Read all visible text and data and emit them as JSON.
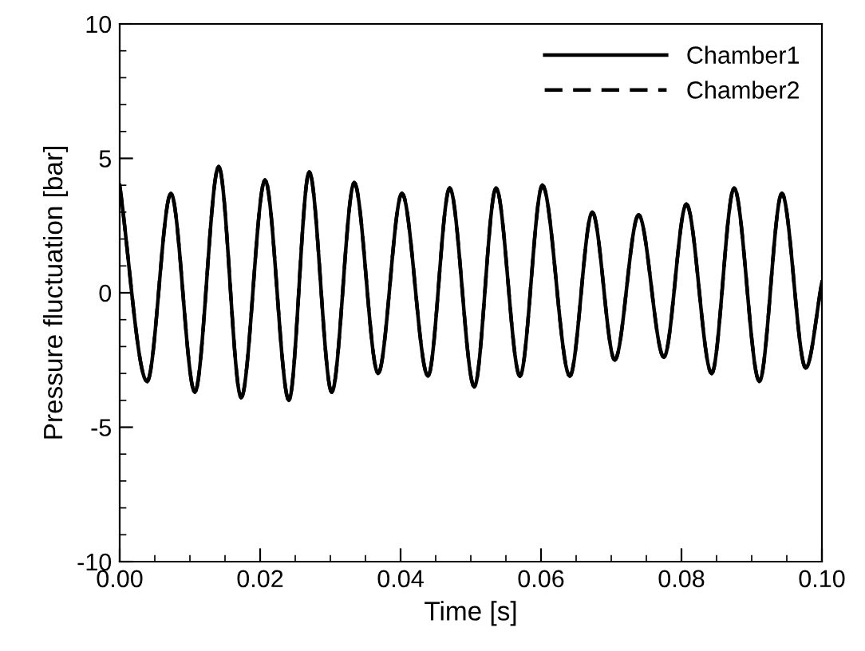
{
  "chart_data": {
    "type": "line",
    "xlabel": "Time [s]",
    "ylabel": "Pressure fluctuation [bar]",
    "x": [
      0,
      0.0039,
      0.0073,
      0.0107,
      0.0141,
      0.0173,
      0.0207,
      0.0241,
      0.027,
      0.0302,
      0.0334,
      0.0368,
      0.0402,
      0.0439,
      0.047,
      0.0505,
      0.0536,
      0.057,
      0.0602,
      0.0641,
      0.0673,
      0.0705,
      0.0739,
      0.0775,
      0.0807,
      0.0843,
      0.0875,
      0.0911,
      0.0943,
      0.0977,
      0.1
    ],
    "series": [
      {
        "name": "Chamber1",
        "color": "#000000",
        "line_style": "solid",
        "values": [
          4.0,
          -3.3,
          3.7,
          -3.7,
          4.7,
          -3.9,
          4.2,
          -4.0,
          4.5,
          -3.7,
          4.1,
          -3.0,
          3.7,
          -3.1,
          3.9,
          -3.5,
          3.9,
          -3.1,
          4.0,
          -3.1,
          3.0,
          -2.5,
          2.9,
          -2.4,
          3.3,
          -3.0,
          3.9,
          -3.3,
          3.7,
          -2.8,
          0.4
        ]
      },
      {
        "name": "Chamber2",
        "color": "#000000",
        "line_style": "dashed",
        "values": [
          4.0,
          -3.3,
          3.7,
          -3.7,
          4.7,
          -3.9,
          4.2,
          -4.0,
          4.5,
          -3.7,
          4.1,
          -3.0,
          3.7,
          -3.1,
          3.9,
          -3.5,
          3.9,
          -3.1,
          4.0,
          -3.1,
          3.0,
          -2.5,
          2.9,
          -2.4,
          3.3,
          -3.0,
          3.9,
          -3.3,
          3.7,
          -2.8,
          0.4
        ]
      }
    ],
    "xlim": [
      0,
      0.1
    ],
    "ylim": [
      -10,
      10
    ],
    "xticks": [
      {
        "value": 0,
        "label": "0.00"
      },
      {
        "value": 0.02,
        "label": "0.02"
      },
      {
        "value": 0.04,
        "label": "0.04"
      },
      {
        "value": 0.06,
        "label": "0.06"
      },
      {
        "value": 0.08,
        "label": "0.08"
      },
      {
        "value": 0.1,
        "label": "0.10"
      }
    ],
    "yticks": [
      -10,
      -5,
      0,
      5,
      10
    ],
    "legend": "top right",
    "grid": false,
    "marker": "none"
  }
}
